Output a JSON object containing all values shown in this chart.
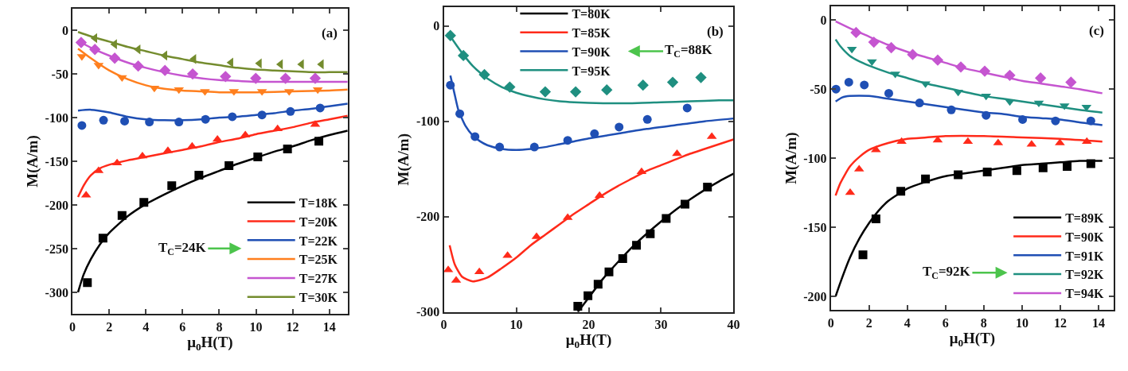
{
  "chart_data": [
    {
      "type": "scatter",
      "xlabel": "μ$_{0}$H(T)",
      "ylabel": "M(A/m)",
      "xlim": [
        0,
        15
      ],
      "xticks": [
        0,
        2,
        4,
        6,
        8,
        10,
        12,
        14
      ],
      "ylim": [
        -325,
        25
      ],
      "yticks": [
        -300,
        -250,
        -200,
        -150,
        -100,
        -50,
        0
      ],
      "legend": "bottom right",
      "annotations": [
        "(a)",
        "T$_{C}$=24K"
      ],
      "series": [
        {
          "type": "line",
          "name": "T=18K",
          "color": "#000000",
          "x": [
            0.3,
            0.6,
            1,
            1.5,
            2,
            3,
            4,
            5,
            6,
            7,
            8,
            9,
            10,
            11,
            12,
            13,
            14,
            15
          ],
          "values": [
            -300,
            -280,
            -262,
            -245,
            -232,
            -213,
            -199,
            -188,
            -178,
            -169,
            -161,
            -153,
            -146,
            -139,
            -133,
            -126,
            -120,
            -115
          ]
        },
        {
          "type": "line",
          "name": "T=20K",
          "color": "#ff2a1a",
          "x": [
            0.3,
            0.6,
            1,
            1.5,
            2,
            3,
            4,
            5,
            6,
            7,
            8,
            9,
            10,
            11,
            12,
            13,
            14,
            15
          ],
          "values": [
            -191,
            -178,
            -166,
            -158,
            -154,
            -149,
            -145,
            -141,
            -137,
            -133,
            -128,
            -124,
            -119,
            -115,
            -111,
            -106,
            -102,
            -98
          ]
        },
        {
          "type": "line",
          "name": "T=22K",
          "color": "#1f4fb4",
          "x": [
            0.3,
            1,
            2,
            3,
            4,
            5,
            6,
            7,
            8,
            9,
            10,
            11,
            12,
            13,
            14,
            15
          ],
          "values": [
            -92,
            -91,
            -94,
            -99,
            -102,
            -103,
            -103,
            -102,
            -100,
            -99,
            -97,
            -95,
            -92,
            -90,
            -87,
            -84
          ]
        },
        {
          "type": "line",
          "name": "T=25K",
          "color": "#ff7f1e",
          "x": [
            0.3,
            1,
            2,
            3,
            4,
            5,
            6,
            7,
            8,
            10,
            12,
            14,
            15
          ],
          "values": [
            -21,
            -32,
            -46,
            -56,
            -63,
            -67,
            -69,
            -70,
            -71,
            -71,
            -70,
            -69,
            -68
          ]
        },
        {
          "type": "line",
          "name": "T=27K",
          "color": "#c555d0",
          "x": [
            0.3,
            1,
            2,
            3,
            4,
            5,
            6,
            7,
            8,
            9,
            10,
            12,
            14,
            15
          ],
          "values": [
            -12,
            -20,
            -29,
            -37,
            -43,
            -48,
            -52,
            -55,
            -57,
            -58,
            -59,
            -59,
            -59,
            -59
          ]
        },
        {
          "type": "line",
          "name": "T=30K",
          "color": "#748c2e",
          "x": [
            0.3,
            1,
            2,
            3,
            4,
            5,
            6,
            7,
            8,
            9,
            10,
            11,
            12,
            13,
            14,
            15
          ],
          "values": [
            -2,
            -7,
            -13,
            -19,
            -24,
            -29,
            -33,
            -37,
            -40,
            -43,
            -45,
            -46,
            -47,
            -48,
            -48,
            -48
          ]
        },
        {
          "marker": "square",
          "color": "#000000",
          "x": [
            0.81,
            1.66,
            2.7,
            3.89,
            5.41,
            6.89,
            8.53,
            10.1,
            11.72,
            13.43
          ],
          "values": [
            -289,
            -238,
            -212,
            -197,
            -178,
            -166,
            -155,
            -145,
            -136,
            -127
          ]
        },
        {
          "marker": "triangle",
          "color": "#ff2a1a",
          "x": [
            0.74,
            1.42,
            2.43,
            3.81,
            5.2,
            6.52,
            7.9,
            9.42,
            11.18,
            13.23
          ],
          "values": [
            -189,
            -161,
            -152,
            -144,
            -138,
            -133,
            -125,
            -120,
            -113,
            -108
          ]
        },
        {
          "marker": "circle",
          "color": "#1f4fb4",
          "x": [
            0.51,
            1.69,
            2.84,
            4.19,
            5.8,
            7.25,
            8.71,
            10.33,
            11.88,
            13.5
          ],
          "values": [
            -109,
            -103,
            -104,
            -105,
            -105,
            -102,
            -99,
            -97,
            -93,
            -89
          ]
        },
        {
          "marker": "triangle-down",
          "color": "#ff7f1e",
          "x": [
            0.51,
            1.42,
            2.7,
            4.46,
            5.8,
            7.22,
            8.8,
            10.33,
            11.81,
            13.37
          ],
          "values": [
            -30,
            -40,
            -54,
            -66,
            -68,
            -70,
            -70,
            -70,
            -70,
            -68
          ]
        },
        {
          "marker": "diamond",
          "color": "#c555d0",
          "x": [
            0.47,
            1.22,
            2.3,
            3.58,
            5.04,
            6.55,
            8.34,
            9.99,
            11.61,
            13.23
          ],
          "values": [
            -14,
            -22,
            -32,
            -41,
            -46,
            -50,
            -53,
            -55,
            -55,
            -55
          ]
        },
        {
          "marker": "triangle-left",
          "color": "#748c2e",
          "x": [
            1.22,
            2.3,
            3.58,
            5.04,
            6.62,
            8.64,
            10.19,
            11.34,
            12.49,
            13.57
          ],
          "values": [
            -9,
            -16,
            -22,
            -29,
            -33,
            -37,
            -38,
            -39,
            -39,
            -39
          ]
        }
      ]
    },
    {
      "type": "scatter",
      "xlabel": "μ$_{0}$H(T)",
      "ylabel": "M(A/m)",
      "xlim": [
        0,
        40
      ],
      "xticks": [
        0,
        10,
        20,
        30,
        40
      ],
      "ylim": [
        -300,
        20
      ],
      "yticks": [
        -300,
        -200,
        -100,
        0
      ],
      "legend": "top",
      "annotations": [
        "(b)",
        "T$_{C}$=88K"
      ],
      "series": [
        {
          "type": "line",
          "name": "T=80K",
          "color": "#000000",
          "x": [
            18.5,
            20,
            22,
            24,
            26,
            28,
            30,
            32,
            34,
            36,
            38,
            40
          ],
          "values": [
            -300,
            -285,
            -265,
            -248,
            -232,
            -218,
            -205,
            -193,
            -182,
            -172,
            -163,
            -155
          ]
        },
        {
          "type": "line",
          "name": "T=85K",
          "color": "#ff2a1a",
          "x": [
            0.8,
            1.5,
            2.5,
            4,
            6,
            8,
            10,
            12,
            14,
            16,
            18,
            20,
            22,
            24,
            26,
            28,
            30,
            32,
            34,
            36,
            38,
            40
          ],
          "values": [
            -230,
            -250,
            -263,
            -268,
            -264,
            -254,
            -243,
            -230,
            -219,
            -208,
            -197,
            -187,
            -177,
            -168,
            -160,
            -152,
            -146,
            -140,
            -134,
            -129,
            -124,
            -119
          ]
        },
        {
          "type": "line",
          "name": "T=90K",
          "color": "#1f4fb4",
          "x": [
            0.9,
            1.5,
            2,
            3,
            4,
            5,
            6,
            8,
            10,
            12,
            14,
            16,
            18,
            20,
            24,
            28,
            32,
            36,
            40
          ],
          "values": [
            -52,
            -72,
            -88,
            -105,
            -115,
            -121,
            -125,
            -129,
            -130,
            -129,
            -127,
            -124,
            -121,
            -118,
            -113,
            -108,
            -104,
            -100,
            -97
          ]
        },
        {
          "type": "line",
          "name": "T=95K",
          "color": "#1f8f80",
          "x": [
            0.5,
            1,
            2,
            3,
            4,
            5,
            6,
            8,
            10,
            12,
            14,
            16,
            18,
            22,
            26,
            30,
            34,
            38,
            40
          ],
          "values": [
            -7,
            -12,
            -23,
            -33,
            -42,
            -49,
            -55,
            -64,
            -70,
            -74,
            -77,
            -79,
            -80,
            -81,
            -81,
            -80,
            -79,
            -78,
            -78
          ]
        },
        {
          "marker": "square",
          "color": "#000000",
          "x": [
            18.5,
            19.9,
            21.3,
            22.8,
            24.7,
            26.6,
            28.5,
            30.7,
            33.3,
            36.4
          ],
          "values": [
            -294,
            -283,
            -271,
            -258,
            -244,
            -230,
            -218,
            -202,
            -187,
            -169
          ]
        },
        {
          "marker": "triangle",
          "color": "#ff2a1a",
          "x": [
            0.6,
            1.7,
            4.9,
            8.8,
            12.8,
            17.1,
            21.5,
            27.3,
            32.2,
            37.0
          ],
          "values": [
            -256,
            -267,
            -258,
            -241,
            -221,
            -201,
            -178,
            -153,
            -134,
            -116
          ]
        },
        {
          "marker": "circle",
          "color": "#1f4fb4",
          "x": [
            0.9,
            2.2,
            4.3,
            7.7,
            12.5,
            17.1,
            20.8,
            24.2,
            28.1,
            33.6
          ],
          "values": [
            -62,
            -92,
            -116,
            -127,
            -127,
            -120,
            -113,
            -106,
            -98,
            -86
          ]
        },
        {
          "marker": "diamond",
          "color": "#1f8f80",
          "x": [
            0.9,
            2.7,
            5.6,
            9.1,
            14.0,
            18.2,
            22.5,
            27.5,
            31.6,
            35.5
          ],
          "values": [
            -10,
            -31,
            -51,
            -64,
            -69,
            -69,
            -67,
            -62,
            -59,
            -54
          ]
        }
      ]
    },
    {
      "type": "scatter",
      "xlabel": "μ$_{0}$H(T)",
      "ylabel": "M(A/m)",
      "xlim": [
        0,
        14.8
      ],
      "xticks": [
        0,
        2,
        4,
        6,
        8,
        10,
        12,
        14
      ],
      "ylim": [
        -210,
        10
      ],
      "yticks": [
        -200,
        -150,
        -100,
        -50,
        0
      ],
      "legend": "bottom right",
      "annotations": [
        "(c)",
        "T$_{C}$=92K"
      ],
      "series": [
        {
          "type": "line",
          "name": "T=89K",
          "color": "#000000",
          "x": [
            0.25,
            0.5,
            1,
            1.5,
            2,
            2.5,
            3,
            4,
            5,
            6,
            7,
            8,
            9,
            10,
            11,
            12,
            13,
            14.2
          ],
          "values": [
            -200,
            -190,
            -172,
            -158,
            -147,
            -138,
            -131,
            -122,
            -117,
            -113,
            -111,
            -109,
            -107,
            -105,
            -104,
            -103,
            -102,
            -102
          ]
        },
        {
          "type": "line",
          "name": "T=90K",
          "color": "#ff2a1a",
          "x": [
            0.25,
            0.5,
            1,
            1.5,
            2,
            3,
            4,
            5,
            6,
            8,
            10,
            12,
            14.2
          ],
          "values": [
            -127,
            -118,
            -106,
            -99,
            -94,
            -89,
            -86,
            -85,
            -84,
            -84,
            -85,
            -86,
            -88
          ]
        },
        {
          "type": "line",
          "name": "T=91K",
          "color": "#1f4fb4",
          "x": [
            0.25,
            0.6,
            1,
            2,
            3,
            4,
            5,
            6,
            7,
            8,
            9,
            10,
            11,
            12,
            13,
            14.2
          ],
          "values": [
            -59,
            -56,
            -55,
            -55,
            -57,
            -59,
            -61,
            -63,
            -65,
            -67,
            -68,
            -70,
            -71,
            -72,
            -74,
            -76
          ]
        },
        {
          "type": "line",
          "name": "T=92K",
          "color": "#1f8f80",
          "x": [
            0.25,
            0.5,
            1,
            1.5,
            2,
            3,
            4,
            5,
            6,
            7,
            8,
            9,
            10,
            11,
            12,
            13,
            14.2
          ],
          "values": [
            -14,
            -19,
            -26,
            -30,
            -33,
            -38,
            -42,
            -46,
            -49,
            -52,
            -55,
            -57,
            -59,
            -61,
            -63,
            -65,
            -67
          ]
        },
        {
          "type": "line",
          "name": "T=94K",
          "color": "#c555d0",
          "x": [
            0.25,
            1,
            2,
            3,
            4,
            5,
            6,
            7,
            8,
            9,
            10,
            11,
            12,
            13,
            14.2
          ],
          "values": [
            -1,
            -6,
            -12,
            -18,
            -23,
            -27,
            -31,
            -35,
            -38,
            -41,
            -44,
            -46,
            -48,
            -50,
            -53
          ]
        },
        {
          "marker": "square",
          "color": "#000000",
          "x": [
            1.68,
            2.36,
            3.66,
            4.95,
            6.66,
            8.18,
            9.73,
            11.1,
            12.36,
            13.6
          ],
          "values": [
            -170,
            -144,
            -124,
            -115,
            -112,
            -110,
            -109,
            -107,
            -106,
            -104
          ]
        },
        {
          "marker": "triangle",
          "color": "#ff2a1a",
          "x": [
            1.01,
            1.48,
            2.36,
            3.7,
            5.59,
            7.17,
            8.75,
            10.5,
            11.98,
            13.39
          ],
          "values": [
            -125,
            -108,
            -94,
            -88,
            -87,
            -88,
            -89,
            -90,
            -89,
            -88
          ]
        },
        {
          "marker": "circle",
          "color": "#1f4fb4",
          "x": [
            0.27,
            0.94,
            1.75,
            3.03,
            4.64,
            6.3,
            8.12,
            10.03,
            11.75,
            13.6
          ],
          "values": [
            -50,
            -45,
            -47,
            -53,
            -60,
            -65,
            -69,
            -72,
            -73,
            -73
          ]
        },
        {
          "marker": "triangle-down",
          "color": "#1f8f80",
          "x": [
            1.1,
            2.15,
            3.37,
            4.95,
            6.66,
            8.12,
            9.36,
            10.88,
            12.22,
            13.37
          ],
          "values": [
            -21,
            -30,
            -39,
            -46,
            -52,
            -55,
            -59,
            -60,
            -62,
            -63
          ]
        },
        {
          "marker": "diamond",
          "color": "#c555d0",
          "x": [
            1.32,
            2.25,
            3.16,
            4.28,
            5.59,
            6.8,
            8.05,
            9.36,
            10.97,
            12.56
          ],
          "values": [
            -9,
            -16,
            -20,
            -25,
            -29,
            -34,
            -37,
            -40,
            -42,
            -45
          ]
        }
      ]
    }
  ]
}
